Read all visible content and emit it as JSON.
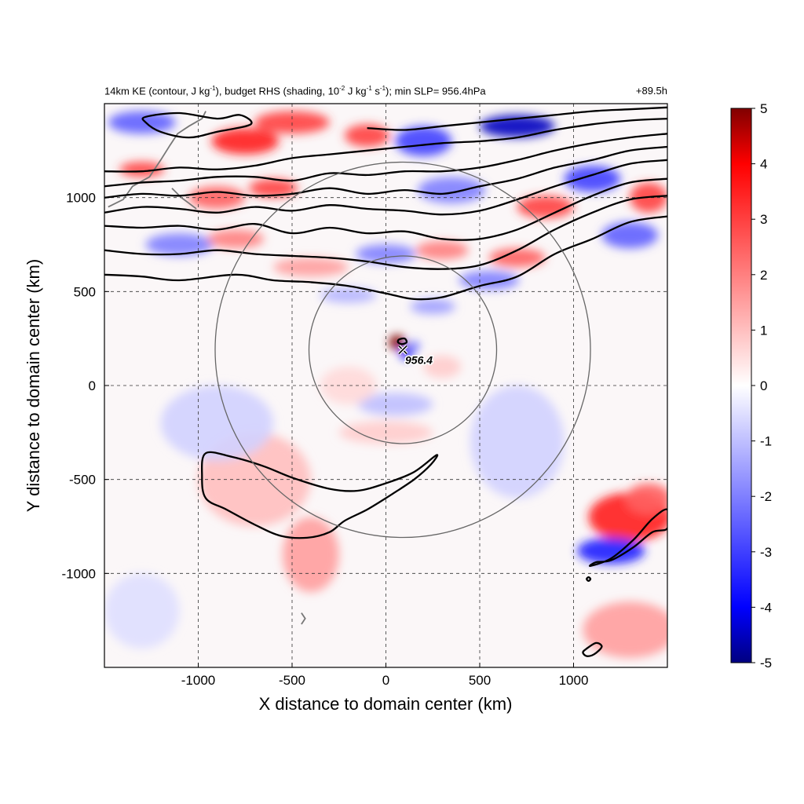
{
  "title_left": {
    "part1": "14km KE (contour, J kg",
    "sup1": "-1",
    "part2": "), budget RHS (shading, 10",
    "sup2": "-2",
    "part3": " J kg",
    "sup3": "-1",
    "part4": " s",
    "sup4": "-1",
    "part5": "); min SLP= 956.4hPa"
  },
  "title_right": "+89.5h",
  "chart_data": {
    "type": "heatmap",
    "xlabel": "X distance to domain center (km)",
    "ylabel": "Y distance to domain center (km)",
    "xlim": [
      -1500,
      1500
    ],
    "ylim": [
      -1500,
      1500
    ],
    "xticks": [
      -1000,
      -500,
      0,
      500,
      1000
    ],
    "yticks": [
      -1000,
      -500,
      0,
      500,
      1000
    ],
    "grid": true,
    "colorbar": {
      "range": [
        -5,
        5
      ],
      "ticks": [
        -5,
        -4,
        -3,
        -2,
        -1,
        0,
        1,
        2,
        3,
        4,
        5
      ],
      "colors": {
        "min": "#000080",
        "low": "#0000ff",
        "mid": "#ffffff",
        "high": "#ff0000",
        "max": "#800000"
      }
    },
    "storm_center": {
      "x": 90,
      "y": 190,
      "label": "956.4"
    },
    "range_circles_radius_km": [
      500,
      1000
    ],
    "ke_contours": [
      {
        "name": "contour-1",
        "points": [
          [
            -1500,
            590
          ],
          [
            -1300,
            580
          ],
          [
            -1100,
            560
          ],
          [
            -800,
            590
          ],
          [
            -600,
            560
          ],
          [
            -400,
            550
          ],
          [
            -200,
            530
          ],
          [
            0,
            490
          ],
          [
            150,
            460
          ],
          [
            300,
            470
          ],
          [
            500,
            530
          ],
          [
            700,
            580
          ],
          [
            900,
            700
          ],
          [
            1100,
            780
          ],
          [
            1300,
            870
          ],
          [
            1500,
            900
          ]
        ]
      },
      {
        "name": "contour-2",
        "points": [
          [
            -1500,
            720
          ],
          [
            -1300,
            700
          ],
          [
            -1100,
            700
          ],
          [
            -900,
            720
          ],
          [
            -700,
            700
          ],
          [
            -500,
            690
          ],
          [
            -300,
            680
          ],
          [
            -100,
            660
          ],
          [
            100,
            630
          ],
          [
            300,
            620
          ],
          [
            500,
            640
          ],
          [
            700,
            720
          ],
          [
            900,
            830
          ],
          [
            1100,
            920
          ],
          [
            1300,
            990
          ],
          [
            1500,
            1010
          ]
        ]
      },
      {
        "name": "contour-3",
        "points": [
          [
            -1500,
            850
          ],
          [
            -1300,
            840
          ],
          [
            -1100,
            850
          ],
          [
            -900,
            830
          ],
          [
            -700,
            860
          ],
          [
            -500,
            810
          ],
          [
            -300,
            840
          ],
          [
            -100,
            810
          ],
          [
            100,
            820
          ],
          [
            300,
            780
          ],
          [
            500,
            780
          ],
          [
            700,
            830
          ],
          [
            900,
            920
          ],
          [
            1100,
            1010
          ],
          [
            1300,
            1080
          ],
          [
            1500,
            1100
          ]
        ]
      },
      {
        "name": "contour-4",
        "points": [
          [
            -1500,
            920
          ],
          [
            -1300,
            950
          ],
          [
            -1100,
            940
          ],
          [
            -900,
            920
          ],
          [
            -700,
            950
          ],
          [
            -500,
            930
          ],
          [
            -300,
            960
          ],
          [
            -100,
            940
          ],
          [
            100,
            930
          ],
          [
            300,
            910
          ],
          [
            500,
            930
          ],
          [
            700,
            990
          ],
          [
            900,
            1060
          ],
          [
            1100,
            1120
          ],
          [
            1300,
            1180
          ],
          [
            1500,
            1200
          ]
        ]
      },
      {
        "name": "contour-5",
        "points": [
          [
            -1500,
            1000
          ],
          [
            -1300,
            1020
          ],
          [
            -1100,
            1010
          ],
          [
            -900,
            1030
          ],
          [
            -700,
            1010
          ],
          [
            -500,
            1020
          ],
          [
            -300,
            1050
          ],
          [
            -100,
            1020
          ],
          [
            100,
            1040
          ],
          [
            300,
            1020
          ],
          [
            500,
            1060
          ],
          [
            700,
            1100
          ],
          [
            900,
            1160
          ],
          [
            1100,
            1200
          ],
          [
            1300,
            1250
          ],
          [
            1500,
            1270
          ]
        ]
      },
      {
        "name": "contour-6",
        "points": [
          [
            -1500,
            1060
          ],
          [
            -1300,
            1080
          ],
          [
            -1100,
            1090
          ],
          [
            -900,
            1110
          ],
          [
            -700,
            1110
          ],
          [
            -500,
            1090
          ],
          [
            -300,
            1130
          ],
          [
            -100,
            1120
          ],
          [
            100,
            1140
          ],
          [
            300,
            1140
          ],
          [
            500,
            1160
          ],
          [
            700,
            1200
          ],
          [
            900,
            1250
          ],
          [
            1100,
            1290
          ],
          [
            1300,
            1320
          ],
          [
            1500,
            1340
          ]
        ]
      },
      {
        "name": "contour-7",
        "points": [
          [
            -1500,
            1140
          ],
          [
            -1300,
            1140
          ],
          [
            -1100,
            1160
          ],
          [
            -900,
            1150
          ],
          [
            -700,
            1170
          ],
          [
            -500,
            1210
          ],
          [
            -300,
            1230
          ],
          [
            -100,
            1250
          ],
          [
            100,
            1270
          ],
          [
            300,
            1290
          ],
          [
            500,
            1300
          ],
          [
            700,
            1320
          ],
          [
            900,
            1360
          ],
          [
            1100,
            1390
          ],
          [
            1300,
            1410
          ],
          [
            1500,
            1420
          ]
        ]
      },
      {
        "name": "contour-8",
        "points": [
          [
            -100,
            1370
          ],
          [
            100,
            1360
          ],
          [
            300,
            1380
          ],
          [
            500,
            1400
          ],
          [
            700,
            1420
          ],
          [
            900,
            1440
          ],
          [
            1100,
            1460
          ],
          [
            1300,
            1470
          ],
          [
            1500,
            1480
          ]
        ]
      },
      {
        "name": "contour-9",
        "closed": true,
        "points": [
          [
            -1280,
            1430
          ],
          [
            -1100,
            1450
          ],
          [
            -900,
            1420
          ],
          [
            -780,
            1440
          ],
          [
            -720,
            1390
          ],
          [
            -900,
            1350
          ],
          [
            -1050,
            1320
          ],
          [
            -1200,
            1350
          ],
          [
            -1280,
            1400
          ]
        ]
      },
      {
        "name": "contour-south-band",
        "closed": true,
        "points": [
          [
            -960,
            -360
          ],
          [
            -820,
            -380
          ],
          [
            -650,
            -430
          ],
          [
            -500,
            -490
          ],
          [
            -300,
            -550
          ],
          [
            -150,
            -560
          ],
          [
            0,
            -520
          ],
          [
            150,
            -460
          ],
          [
            270,
            -370
          ],
          [
            240,
            -420
          ],
          [
            150,
            -500
          ],
          [
            30,
            -580
          ],
          [
            -100,
            -660
          ],
          [
            -220,
            -720
          ],
          [
            -300,
            -780
          ],
          [
            -420,
            -810
          ],
          [
            -560,
            -800
          ],
          [
            -700,
            -740
          ],
          [
            -850,
            -660
          ],
          [
            -960,
            -600
          ],
          [
            -980,
            -480
          ]
        ]
      },
      {
        "name": "contour-se-ring",
        "closed": true,
        "points": [
          [
            1090,
            -960
          ],
          [
            1200,
            -920
          ],
          [
            1320,
            -820
          ],
          [
            1420,
            -710
          ],
          [
            1500,
            -660
          ],
          [
            1500,
            -760
          ],
          [
            1420,
            -780
          ],
          [
            1320,
            -860
          ],
          [
            1200,
            -930
          ],
          [
            1120,
            -940
          ]
        ]
      },
      {
        "name": "contour-se-inner",
        "closed": true,
        "points": [
          [
            1080,
            -1020
          ],
          [
            1090,
            -1030
          ],
          [
            1080,
            -1040
          ],
          [
            1070,
            -1030
          ]
        ]
      },
      {
        "name": "contour-se-bottom",
        "closed": true,
        "points": [
          [
            1070,
            -1400
          ],
          [
            1120,
            -1370
          ],
          [
            1150,
            -1390
          ],
          [
            1110,
            -1430
          ],
          [
            1070,
            -1440
          ],
          [
            1050,
            -1420
          ]
        ]
      },
      {
        "name": "contour-eye",
        "closed": true,
        "points": [
          [
            70,
            245
          ],
          [
            100,
            250
          ],
          [
            110,
            230
          ],
          [
            85,
            220
          ],
          [
            65,
            230
          ]
        ]
      }
    ],
    "shading_blobs": [
      {
        "x": 60,
        "y": 230,
        "rx": 45,
        "ry": 40,
        "value": 5
      },
      {
        "x": 110,
        "y": 170,
        "rx": 35,
        "ry": 30,
        "value": -4
      },
      {
        "x": 150,
        "y": 210,
        "rx": 30,
        "ry": 25,
        "value": -2.5
      },
      {
        "x": -750,
        "y": 1300,
        "rx": 180,
        "ry": 70,
        "value": 3.5
      },
      {
        "x": -1300,
        "y": 1150,
        "rx": 120,
        "ry": 40,
        "value": 3
      },
      {
        "x": -1300,
        "y": 1400,
        "rx": 180,
        "ry": 60,
        "value": -2.5
      },
      {
        "x": -500,
        "y": 1400,
        "rx": 200,
        "ry": 60,
        "value": 3
      },
      {
        "x": -100,
        "y": 1330,
        "rx": 120,
        "ry": 60,
        "value": 3
      },
      {
        "x": 200,
        "y": 1300,
        "rx": 150,
        "ry": 80,
        "value": -3
      },
      {
        "x": 700,
        "y": 1380,
        "rx": 200,
        "ry": 60,
        "value": -4.5
      },
      {
        "x": 1100,
        "y": 1100,
        "rx": 150,
        "ry": 70,
        "value": -3
      },
      {
        "x": -600,
        "y": 1050,
        "rx": 130,
        "ry": 50,
        "value": 3
      },
      {
        "x": -900,
        "y": 1000,
        "rx": 150,
        "ry": 60,
        "value": 2.5
      },
      {
        "x": 350,
        "y": 1040,
        "rx": 180,
        "ry": 70,
        "value": -2
      },
      {
        "x": 850,
        "y": 950,
        "rx": 150,
        "ry": 60,
        "value": 3
      },
      {
        "x": 1300,
        "y": 800,
        "rx": 150,
        "ry": 70,
        "value": -2.5
      },
      {
        "x": 1400,
        "y": 1000,
        "rx": 100,
        "ry": 80,
        "value": 3
      },
      {
        "x": -1100,
        "y": 750,
        "rx": 180,
        "ry": 60,
        "value": -2
      },
      {
        "x": -800,
        "y": 780,
        "rx": 150,
        "ry": 50,
        "value": 2
      },
      {
        "x": 0,
        "y": 700,
        "rx": 160,
        "ry": 50,
        "value": -2
      },
      {
        "x": 300,
        "y": 720,
        "rx": 140,
        "ry": 50,
        "value": 2
      },
      {
        "x": 550,
        "y": 560,
        "rx": 160,
        "ry": 50,
        "value": -2
      },
      {
        "x": 700,
        "y": 680,
        "rx": 150,
        "ry": 50,
        "value": 2.5
      },
      {
        "x": -400,
        "y": 630,
        "rx": 200,
        "ry": 50,
        "value": 1.5
      },
      {
        "x": -200,
        "y": 480,
        "rx": 150,
        "ry": 40,
        "value": -1.2
      },
      {
        "x": 250,
        "y": 420,
        "rx": 120,
        "ry": 40,
        "value": -1.5
      },
      {
        "x": -700,
        "y": -500,
        "rx": 300,
        "ry": 250,
        "value": 1
      },
      {
        "x": -400,
        "y": -900,
        "rx": 150,
        "ry": 200,
        "value": 1.5
      },
      {
        "x": -900,
        "y": -200,
        "rx": 300,
        "ry": 200,
        "value": -0.7
      },
      {
        "x": 700,
        "y": -300,
        "rx": 250,
        "ry": 300,
        "value": -0.7
      },
      {
        "x": 1300,
        "y": -700,
        "rx": 220,
        "ry": 130,
        "value": 3.5
      },
      {
        "x": 1200,
        "y": -880,
        "rx": 180,
        "ry": 70,
        "value": -3.5
      },
      {
        "x": 1400,
        "y": -600,
        "rx": 120,
        "ry": 80,
        "value": 2.5
      },
      {
        "x": 1300,
        "y": -1300,
        "rx": 250,
        "ry": 150,
        "value": 1.5
      },
      {
        "x": -1300,
        "y": -1200,
        "rx": 200,
        "ry": 200,
        "value": -0.5
      },
      {
        "x": 50,
        "y": -100,
        "rx": 200,
        "ry": 60,
        "value": -1
      },
      {
        "x": 0,
        "y": -250,
        "rx": 250,
        "ry": 60,
        "value": 0.8
      },
      {
        "x": 300,
        "y": 100,
        "rx": 100,
        "ry": 60,
        "value": 0.8
      },
      {
        "x": -200,
        "y": 0,
        "rx": 150,
        "ry": 100,
        "value": 0.6
      }
    ],
    "land_outlines": [
      {
        "name": "land-nw",
        "points": [
          [
            -1480,
            950
          ],
          [
            -1400,
            990
          ],
          [
            -1350,
            1060
          ],
          [
            -1260,
            1110
          ],
          [
            -1200,
            1200
          ],
          [
            -1150,
            1280
          ],
          [
            -1110,
            1340
          ],
          [
            -1050,
            1380
          ],
          [
            -980,
            1420
          ],
          [
            -960,
            1460
          ]
        ]
      },
      {
        "name": "land-nw-2",
        "points": [
          [
            -1140,
            1050
          ],
          [
            -1090,
            1000
          ],
          [
            -1050,
            970
          ],
          [
            -1010,
            940
          ]
        ]
      },
      {
        "name": "land-islands-s",
        "points": [
          [
            -450,
            -1210
          ],
          [
            -430,
            -1240
          ],
          [
            -450,
            -1270
          ]
        ]
      }
    ]
  }
}
